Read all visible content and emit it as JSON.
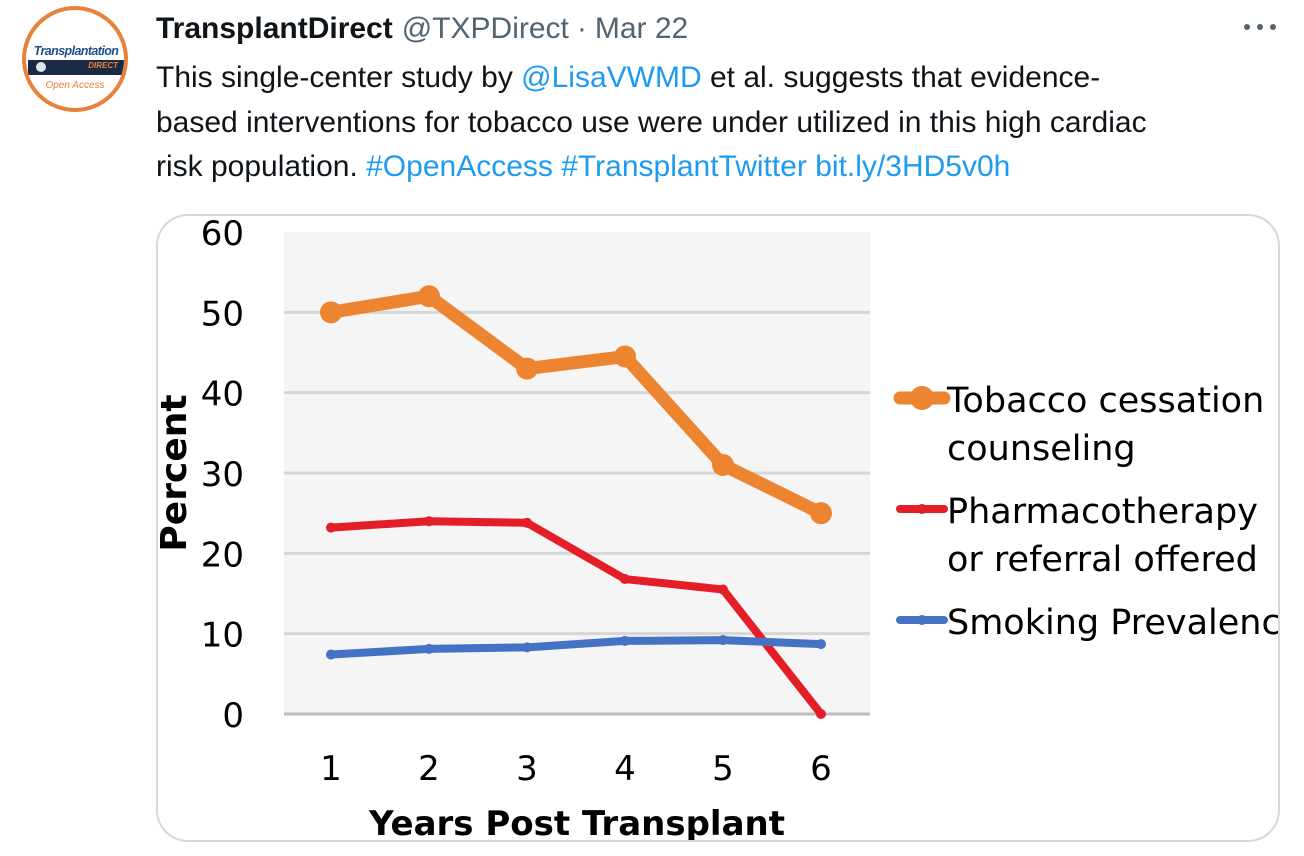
{
  "tweet": {
    "display_name": "TransplantDirect",
    "handle": "@TXPDirect",
    "separator": "·",
    "date": "Mar 22",
    "avatar": {
      "logo_text": "Transplantation",
      "logo_sub": "DIRECT",
      "logo_badge": "Open Access"
    },
    "text": {
      "line1_prefix": "This single-center study by ",
      "mention": "@LisaVWMD",
      "line1_suffix": " et al. suggests that evidence-",
      "line2": "based interventions for tobacco use were under utilized in this high cardiac",
      "line3_prefix": "risk population. ",
      "hashtag1": "#OpenAccess",
      "hashtag2": "#TransplantTwitter",
      "url": "bit.ly/3HD5v0h"
    },
    "more_icon": "more-horizontal-icon"
  },
  "chart_data": {
    "type": "line",
    "x": [
      1,
      2,
      3,
      4,
      5,
      6
    ],
    "xlabel": "Years Post Transplant",
    "ylabel": "Percent",
    "ylim": [
      0,
      60
    ],
    "yticks": [
      0,
      10,
      20,
      30,
      40,
      50,
      60
    ],
    "grid": true,
    "legend_position": "right",
    "series": [
      {
        "name": "Tobacco cessation counseling",
        "legend_lines": [
          "Tobacco cessation",
          "counseling"
        ],
        "color": "#ed8530",
        "values": [
          50,
          52,
          43,
          44.5,
          31,
          25
        ]
      },
      {
        "name": "Pharmacotherapy or referral offered",
        "legend_lines": [
          "Pharmacotherapy",
          "or referral offered"
        ],
        "color": "#e41e26",
        "values": [
          23.2,
          24,
          23.8,
          16.8,
          15.5,
          0
        ]
      },
      {
        "name": "Smoking Prevalence",
        "legend_lines": [
          "Smoking Prevalence"
        ],
        "color": "#4472c4",
        "values": [
          7.4,
          8.1,
          8.3,
          9.1,
          9.2,
          8.7
        ]
      }
    ]
  }
}
